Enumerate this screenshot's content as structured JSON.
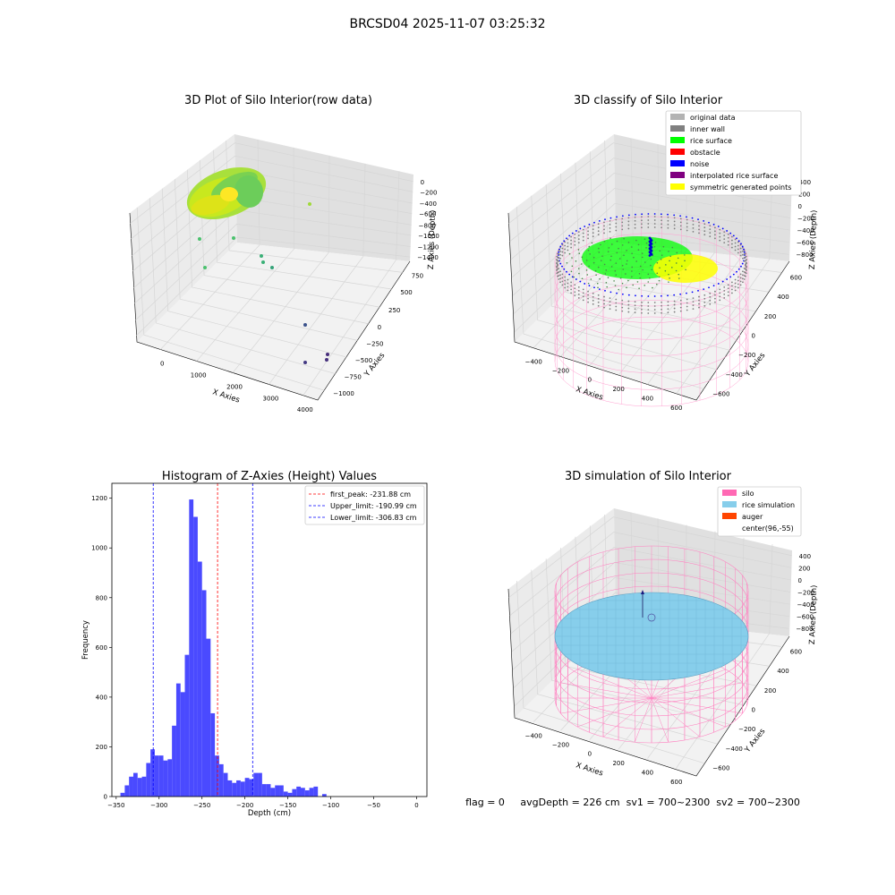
{
  "figure": {
    "suptitle": "BRCSD04 2025-11-07 03:25:32",
    "footer": "flag = 0     avgDepth = 226 cm  sv1 = 700~2300  sv2 = 700~2300"
  },
  "colors": {
    "histogram_bar": "#4a4aff",
    "peak_line": "#ff0000",
    "limit_line": "#0000ff",
    "pane_left": "#ebebeb",
    "pane_right": "#e0e0e0",
    "pane_floor": "#f2f2f2",
    "silo_wire": "#ff7fbf",
    "rice_sim": "#87ceeb",
    "rice_surface": "#00ff00",
    "noise": "#0000ff",
    "inner_wall": "#808080",
    "symmetric": "#ffff00"
  },
  "chart_data": [
    {
      "type": "scatter",
      "projection": "3d",
      "title": "3D Plot of Silo Interior(row data)",
      "xlabel": "X Axies",
      "ylabel": "Y Axies",
      "zlabel": "Z Axies (Depth)",
      "xticks": [
        "0",
        "1000",
        "2000",
        "3000",
        "4000"
      ],
      "yticks": [
        "750",
        "500",
        "250",
        "0",
        "−250",
        "−500",
        "−750",
        "−1000"
      ],
      "zticks": [
        "0",
        "−200",
        "−400",
        "−600",
        "−800",
        "−1000",
        "−1200",
        "−1400"
      ],
      "colormap": "viridis",
      "outlier_points": [
        {
          "x": 4200,
          "y": 950,
          "z": -250
        },
        {
          "x": 550,
          "y": 1050,
          "z": -780
        },
        {
          "x": 1400,
          "y": 950,
          "z": -760
        },
        {
          "x": 2500,
          "y": 700,
          "z": -980
        },
        {
          "x": 2400,
          "y": 650,
          "z": -1080
        },
        {
          "x": 2900,
          "y": 500,
          "z": -1150
        },
        {
          "x": 550,
          "y": 700,
          "z": -1150
        },
        {
          "x": 3900,
          "y": -250,
          "z": -1300
        },
        {
          "x": 3700,
          "y": -700,
          "z": -1350
        },
        {
          "x": 3750,
          "y": -850,
          "z": -1400
        },
        {
          "x": 3400,
          "y": -850,
          "z": -1400
        }
      ],
      "grid": true
    },
    {
      "type": "scatter",
      "projection": "3d",
      "title": "3D classify of Silo Interior",
      "xlabel": "X Axies",
      "ylabel": "Y Axies",
      "zlabel": "Z Axies (Depth)",
      "xticks": [
        "−400",
        "−200",
        "0",
        "200",
        "400",
        "600"
      ],
      "yticks": [
        "600",
        "400",
        "200",
        "0",
        "−200",
        "−400",
        "−600"
      ],
      "zticks": [
        "400",
        "200",
        "0",
        "−200",
        "−400",
        "−600",
        "−800"
      ],
      "legend": [
        {
          "label": "original data",
          "color": "#b3b3b3"
        },
        {
          "label": "inner wall",
          "color": "#808080"
        },
        {
          "label": "rice surface",
          "color": "#00ff00"
        },
        {
          "label": "obstacle",
          "color": "#ff0000"
        },
        {
          "label": "noise",
          "color": "#0000ff"
        },
        {
          "label": "interpolated rice surface",
          "color": "#800080"
        },
        {
          "label": "symmetric generated points",
          "color": "#ffff00"
        }
      ],
      "legend_position": "upper-right",
      "grid": true
    },
    {
      "type": "bar",
      "title": "Histogram of Z-Axies (Height) Values",
      "xlabel": "Depth (cm)",
      "ylabel": "Frequency",
      "xlim": [
        -355,
        12
      ],
      "ylim": [
        0,
        1260
      ],
      "xticks": [
        -350,
        -300,
        -250,
        -200,
        -150,
        -100,
        -50,
        0
      ],
      "yticks": [
        0,
        200,
        400,
        600,
        800,
        1000,
        1200
      ],
      "bin_start": -345,
      "bin_width": 5,
      "values": [
        15,
        45,
        80,
        95,
        75,
        80,
        135,
        190,
        165,
        165,
        145,
        150,
        285,
        455,
        420,
        570,
        1195,
        1125,
        945,
        830,
        635,
        335,
        165,
        130,
        95,
        65,
        55,
        65,
        60,
        75,
        70,
        95,
        95,
        50,
        50,
        35,
        45,
        45,
        20,
        15,
        30,
        40,
        35,
        25,
        35,
        40,
        0,
        10
      ],
      "vlines": [
        {
          "x": -231.88,
          "label": "first_peak: -231.88 cm",
          "color": "#ff0000"
        },
        {
          "x": -190.99,
          "label": "Upper_limit: -190.99 cm",
          "color": "#0000ff"
        },
        {
          "x": -306.83,
          "label": "Lower_limit: -306.83 cm",
          "color": "#0000ff"
        }
      ],
      "legend_position": "upper-right",
      "grid": false
    },
    {
      "type": "surface",
      "projection": "3d",
      "title": "3D simulation of Silo Interior",
      "xlabel": "X Axies",
      "ylabel": "Y Axies",
      "zlabel": "Z Axies (Depth)",
      "xticks": [
        "−400",
        "−200",
        "0",
        "200",
        "400",
        "600"
      ],
      "yticks": [
        "600",
        "400",
        "200",
        "0",
        "−200",
        "−400",
        "−600"
      ],
      "zticks": [
        "400",
        "200",
        "0",
        "−200",
        "−400",
        "−600",
        "−800"
      ],
      "legend": [
        {
          "label": "silo",
          "color": "#ff69b4"
        },
        {
          "label": "rice simulation",
          "color": "#87ceeb"
        },
        {
          "label": "auger",
          "color": "#ff4500"
        },
        {
          "label": "center(96,-55)",
          "color": ""
        }
      ],
      "legend_position": "upper-right",
      "grid": true
    }
  ]
}
